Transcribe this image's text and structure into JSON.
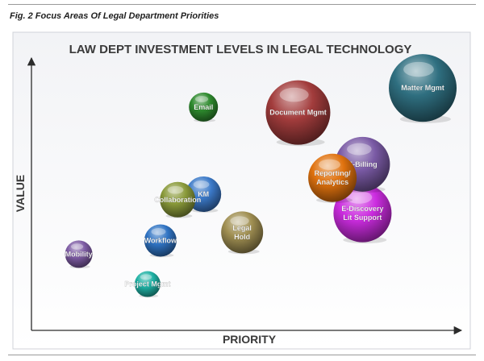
{
  "figure": {
    "caption": "Fig. 2 Focus Areas Of Legal Department Priorities"
  },
  "chart_data": {
    "type": "bubble",
    "title": "LAW DEPT INVESTMENT LEVELS IN LEGAL TECHNOLOGY",
    "xlabel": "PRIORITY",
    "ylabel": "VALUE",
    "xlim": [
      0,
      100
    ],
    "ylim": [
      0,
      100
    ],
    "grid": false,
    "legend": "none",
    "points": [
      {
        "label": "Mobility",
        "x": 11,
        "y": 28,
        "size": 17,
        "color": "#7e5ca4"
      },
      {
        "label": "Project Mgmt",
        "x": 27,
        "y": 17,
        "size": 16,
        "color": "#1fb1a4"
      },
      {
        "label": "Workflow",
        "x": 30,
        "y": 33,
        "size": 20,
        "color": "#2f73c3"
      },
      {
        "label": "KM",
        "x": 40,
        "y": 50,
        "size": 22,
        "color": "#3b79c8"
      },
      {
        "label": "Collaboration",
        "x": 34,
        "y": 48,
        "size": 22,
        "color": "#8a9a3a"
      },
      {
        "label": "Email",
        "x": 40,
        "y": 82,
        "size": 18,
        "color": "#2e8a2e"
      },
      {
        "label": "Legal Hold",
        "x": 49,
        "y": 36,
        "size": 26,
        "color": "#a08f52"
      },
      {
        "label": "Document Mgmt",
        "x": 62,
        "y": 80,
        "size": 40,
        "color": "#a23c3c"
      },
      {
        "label": "Matter Mgmt",
        "x": 91,
        "y": 89,
        "size": 42,
        "color": "#2f6f80"
      },
      {
        "label": "E-Billing",
        "x": 77,
        "y": 61,
        "size": 34,
        "color": "#7a5aa5"
      },
      {
        "label": "E-Discovery Lit Support",
        "x": 77,
        "y": 43,
        "size": 36,
        "color": "#cc2ce0"
      },
      {
        "label": "Reporting/ Analytics",
        "x": 70,
        "y": 56,
        "size": 30,
        "color": "#e0720e"
      }
    ]
  }
}
